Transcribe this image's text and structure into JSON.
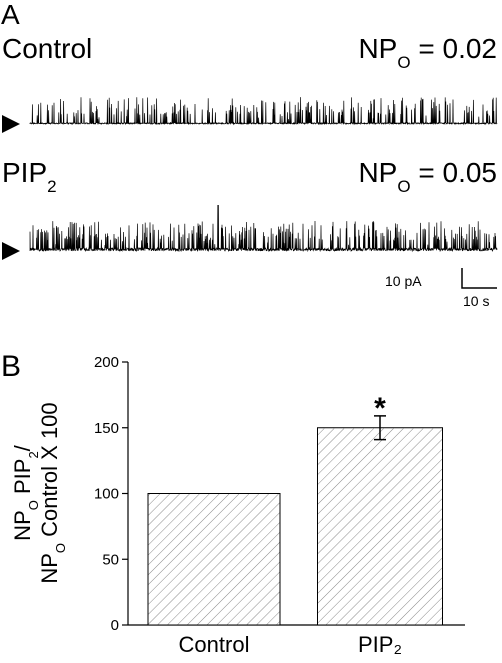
{
  "panel_a": {
    "label": "A",
    "traces": [
      {
        "name": [
          "Control"
        ],
        "npo": [
          "NP",
          "O",
          " = 0.02"
        ]
      },
      {
        "name": [
          "PIP",
          "2"
        ],
        "npo": [
          "NP",
          "O",
          " = 0.05"
        ]
      }
    ],
    "scale_bar": {
      "current": "10 pA",
      "time": "10 s"
    }
  },
  "chart_data": {
    "type": "bar",
    "panel_label": "B",
    "y_label": [
      [
        "NP",
        "O",
        " PIP",
        "2",
        "/"
      ],
      [
        "NP",
        "O",
        " Control X 100"
      ]
    ],
    "categories": [
      "Control",
      "PIP₂"
    ],
    "values": [
      100,
      150
    ],
    "errors": [
      null,
      9
    ],
    "annotations": [
      null,
      "*"
    ],
    "ylim": [
      0,
      200
    ],
    "yticks": [
      0,
      50,
      100,
      150,
      200
    ],
    "hatch": true,
    "color": "#ffffff",
    "hatch_color": "#8a8a8a"
  }
}
